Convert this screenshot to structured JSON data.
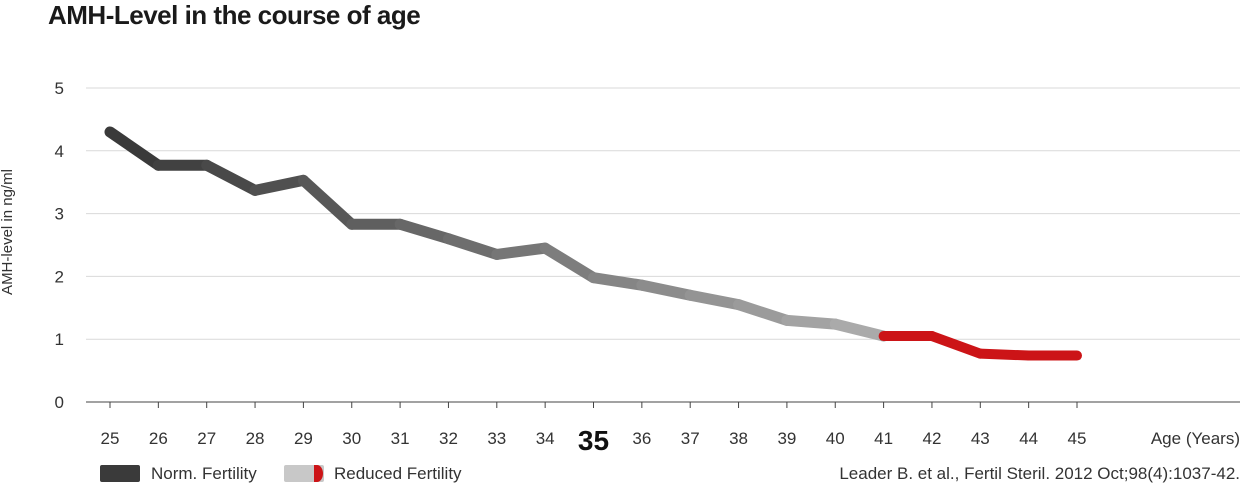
{
  "chart_data": {
    "type": "line",
    "title": "AMH-Level in the course of age",
    "xlabel": "Age (Years)",
    "ylabel": "AMH-level in ng/ml",
    "x": [
      25,
      26,
      27,
      28,
      29,
      30,
      31,
      32,
      33,
      34,
      35,
      36,
      37,
      38,
      39,
      40,
      41,
      42,
      43,
      44,
      45
    ],
    "x_tick_labels": [
      "25",
      "26",
      "27",
      "28",
      "29",
      "30",
      "31",
      "32",
      "33",
      "34",
      "35",
      "36",
      "37",
      "38",
      "39",
      "40",
      "41",
      "42",
      "43",
      "44",
      "45"
    ],
    "highlight_x": "35",
    "y": [
      4.3,
      3.77,
      3.77,
      3.37,
      3.53,
      2.83,
      2.83,
      2.6,
      2.35,
      2.45,
      1.98,
      1.86,
      1.7,
      1.55,
      1.3,
      1.24,
      1.05,
      1.05,
      0.77,
      0.74,
      0.74
    ],
    "ylim": [
      0,
      5
    ],
    "y_ticks": [
      "0",
      "1",
      "2",
      "3",
      "4",
      "5"
    ],
    "grid": true,
    "reduced_fertility_from_age": 41,
    "legend": [
      {
        "name": "Norm. Fertility",
        "color": "#3a3a3a"
      },
      {
        "name": "Reduced Fertility",
        "color": "#c8c8c8",
        "accent": "#cc1417"
      }
    ],
    "source": "Leader B. et al., Fertil Steril. 2012 Oct;98(4):1037-42.",
    "colors": {
      "start": "#3a3a3a",
      "end": "#c8c8c8",
      "reduced": "#cc1417",
      "grid": "#d9d9d9"
    }
  }
}
